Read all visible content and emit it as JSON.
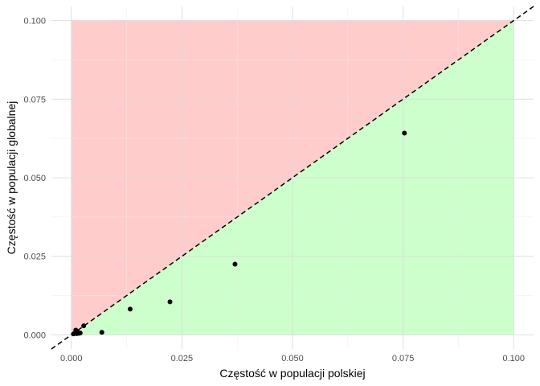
{
  "chart_data": {
    "type": "scatter",
    "xlabel": "Częstość w populacji polskiej",
    "ylabel": "Częstość w populacji globalnej",
    "xlim": [
      -0.0045,
      0.1045
    ],
    "ylim": [
      -0.0045,
      0.1045
    ],
    "x_ticks": [
      0.0,
      0.025,
      0.05,
      0.075,
      0.1
    ],
    "y_ticks": [
      0.0,
      0.025,
      0.05,
      0.075,
      0.1
    ],
    "x_tick_labels": [
      "0.000",
      "0.025",
      "0.050",
      "0.075",
      "0.100"
    ],
    "y_tick_labels": [
      "0.000",
      "0.025",
      "0.050",
      "0.075",
      "0.100"
    ],
    "grid": true,
    "reference_line": {
      "type": "diagonal",
      "slope": 1,
      "intercept": 0,
      "style": "dashed",
      "color": "#000000"
    },
    "regions": [
      {
        "name": "above-diagonal",
        "color": "#ffcccc"
      },
      {
        "name": "below-diagonal",
        "color": "#ccffcc"
      }
    ],
    "points": [
      {
        "x": 0.0005,
        "y": 0.0003
      },
      {
        "x": 0.0008,
        "y": 0.0006
      },
      {
        "x": 0.001,
        "y": 0.001
      },
      {
        "x": 0.0012,
        "y": 0.0004
      },
      {
        "x": 0.0015,
        "y": 0.0008
      },
      {
        "x": 0.0017,
        "y": 0.0005
      },
      {
        "x": 0.002,
        "y": 0.0006
      },
      {
        "x": 0.001,
        "y": 0.0015
      },
      {
        "x": 0.0028,
        "y": 0.0029
      },
      {
        "x": 0.0069,
        "y": 0.0008
      },
      {
        "x": 0.0133,
        "y": 0.0082
      },
      {
        "x": 0.0223,
        "y": 0.0105
      },
      {
        "x": 0.037,
        "y": 0.0225
      },
      {
        "x": 0.0753,
        "y": 0.0642
      }
    ],
    "point_color": "#000000"
  }
}
